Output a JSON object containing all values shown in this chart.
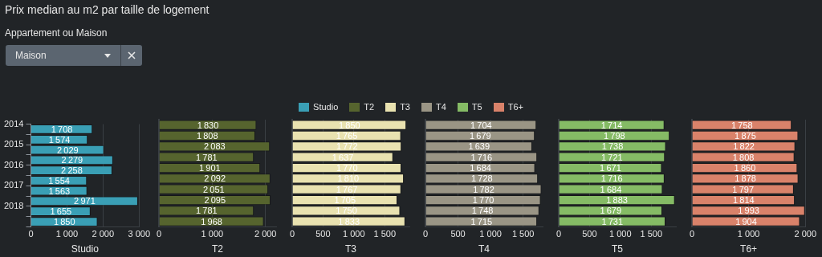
{
  "chart_data": [
    {
      "type": "bar",
      "orientation": "horizontal",
      "title": "Prix median au m2 par taille de logement",
      "annotations": [
        "Appartement ou Maison",
        "Maison"
      ],
      "categories": [
        "2014",
        null,
        "2015",
        null,
        "2016",
        null,
        "2017",
        null,
        "2018",
        null
      ],
      "series": [
        {
          "name": "Studio",
          "color": "#3a9fb5",
          "values": [
            1708,
            1574,
            2029,
            2279,
            2258,
            1554,
            1563,
            2971,
            1655,
            1850
          ]
        }
      ],
      "xlabel": "Studio",
      "xlim": [
        0,
        3000
      ],
      "xticks": [
        {
          "value": 0,
          "label": "0"
        },
        {
          "value": 1000,
          "label": "1 000"
        },
        {
          "value": 2000,
          "label": "2 000"
        },
        {
          "value": 3000,
          "label": "3 000"
        }
      ],
      "grid": "x",
      "data_labels": true,
      "legend": "top"
    },
    {
      "type": "bar",
      "orientation": "horizontal",
      "categories": [
        "2014",
        null,
        "2015",
        null,
        "2016",
        null,
        "2017",
        null,
        "2018",
        null
      ],
      "series": [
        {
          "name": "T2",
          "color": "#56642e",
          "values": [
            1830,
            1808,
            2083,
            1781,
            1901,
            2092,
            2051,
            2095,
            1781,
            1968
          ]
        }
      ],
      "xlabel": "T2",
      "xlim": [
        0,
        2200
      ],
      "xticks": [
        {
          "value": 0,
          "label": "0"
        },
        {
          "value": 1000,
          "label": "1 000"
        },
        {
          "value": 2000,
          "label": "2 000"
        }
      ],
      "grid": "x",
      "data_labels": true,
      "legend": "top",
      "tick_labels": "x"
    },
    {
      "type": "bar",
      "orientation": "horizontal",
      "categories": [
        "2014",
        null,
        "2015",
        null,
        "2016",
        null,
        "2017",
        null,
        "2018",
        null
      ],
      "series": [
        {
          "name": "T3",
          "color": "#e9e2b0",
          "values": [
            1850,
            1765,
            1772,
            1637,
            1770,
            1810,
            1767,
            1705,
            1750,
            1833
          ]
        }
      ],
      "xlabel": "T3",
      "xlim": [
        0,
        1900
      ],
      "xticks": [
        {
          "value": 0,
          "label": "0"
        },
        {
          "value": 500,
          "label": "500"
        },
        {
          "value": 1000,
          "label": "1 000"
        },
        {
          "value": 1500,
          "label": "1 500"
        }
      ],
      "grid": "x",
      "data_labels": true,
      "legend": "top",
      "tick_labels": "x"
    },
    {
      "type": "bar",
      "orientation": "horizontal",
      "categories": [
        "2014",
        null,
        "2015",
        null,
        "2016",
        null,
        "2017",
        null,
        "2018",
        null
      ],
      "series": [
        {
          "name": "T4",
          "color": "#9a9585",
          "values": [
            1704,
            1679,
            1639,
            1716,
            1684,
            1728,
            1782,
            1770,
            1748,
            1715
          ]
        }
      ],
      "xlabel": "T4",
      "xlim": [
        0,
        1800
      ],
      "xticks": [
        {
          "value": 0,
          "label": "0"
        },
        {
          "value": 500,
          "label": "500"
        },
        {
          "value": 1000,
          "label": "1 000"
        },
        {
          "value": 1500,
          "label": "1 500"
        }
      ],
      "grid": "x",
      "data_labels": true,
      "legend": "top",
      "tick_labels": "x"
    },
    {
      "type": "bar",
      "orientation": "horizontal",
      "categories": [
        "2014",
        null,
        "2015",
        null,
        "2016",
        null,
        "2017",
        null,
        "2018",
        null
      ],
      "series": [
        {
          "name": "T5",
          "color": "#85bb65",
          "values": [
            1714,
            1798,
            1738,
            1721,
            1671,
            1716,
            1684,
            1883,
            1679,
            1731
          ]
        }
      ],
      "xlabel": "T5",
      "xlim": [
        0,
        1900
      ],
      "xticks": [
        {
          "value": 0,
          "label": "0"
        },
        {
          "value": 500,
          "label": "500"
        },
        {
          "value": 1000,
          "label": "1 000"
        },
        {
          "value": 1500,
          "label": "1 500"
        }
      ],
      "grid": "x",
      "data_labels": true,
      "legend": "top",
      "tick_labels": "x"
    },
    {
      "type": "bar",
      "orientation": "horizontal",
      "categories": [
        "2014",
        null,
        "2015",
        null,
        "2016",
        null,
        "2017",
        null,
        "2018",
        null
      ],
      "series": [
        {
          "name": "T6+",
          "color": "#d9826a",
          "values": [
            1758,
            1875,
            1822,
            1808,
            1860,
            1878,
            1797,
            1814,
            1993,
            1904
          ]
        }
      ],
      "xlabel": "T6+",
      "xlim": [
        0,
        2000
      ],
      "xticks": [
        {
          "value": 0,
          "label": "0"
        },
        {
          "value": 1000,
          "label": "1 000"
        },
        {
          "value": 2000,
          "label": "2 000"
        }
      ],
      "grid": "x",
      "data_labels": true,
      "legend": "top",
      "tick_labels": "x"
    }
  ]
}
